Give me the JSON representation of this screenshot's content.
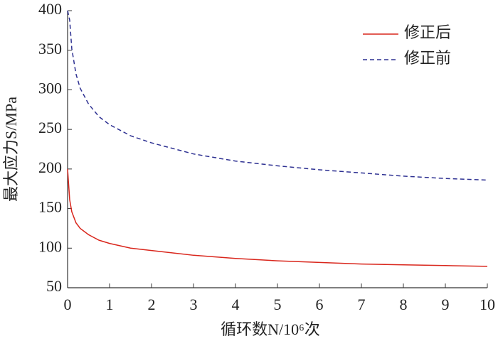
{
  "chart_data": {
    "type": "line",
    "xlabel": "循环数N/10⁶次",
    "ylabel": "最大应力S/MPa",
    "x": [
      0,
      0.05,
      0.1,
      0.2,
      0.3,
      0.5,
      0.75,
      1,
      1.5,
      2,
      3,
      4,
      5,
      6,
      7,
      8,
      9,
      10
    ],
    "series": [
      {
        "name": "修正后",
        "color": "#d9261c",
        "dash": "solid",
        "values": [
          200,
          161,
          146,
          132,
          125,
          117,
          110,
          106,
          100,
          97,
          91,
          87,
          84,
          82,
          80,
          79,
          78,
          77
        ]
      },
      {
        "name": "修正前",
        "color": "#2e3192",
        "dash": "dashed",
        "values": [
          400,
          388,
          352,
          320,
          302,
          282,
          266,
          256,
          242,
          233,
          219,
          210,
          204,
          199,
          195,
          191,
          188,
          186
        ]
      }
    ],
    "xlim": [
      0,
      10
    ],
    "xticks": [
      0,
      1,
      2,
      3,
      4,
      5,
      6,
      7,
      8,
      9,
      10
    ],
    "ylim": [
      50,
      400
    ],
    "yticks": [
      50,
      100,
      150,
      200,
      250,
      300,
      350,
      400
    ],
    "legend": "top-right",
    "grid": false
  }
}
